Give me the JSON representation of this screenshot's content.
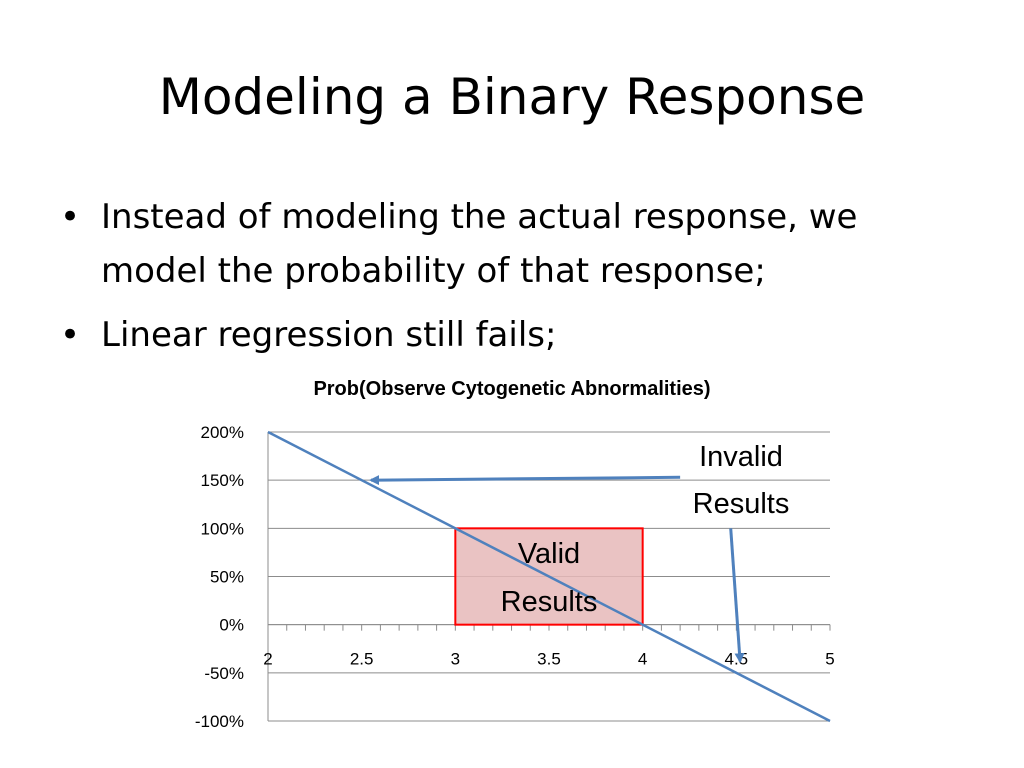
{
  "slide": {
    "title": "Modeling a Binary Response",
    "bullets": [
      "Instead of modeling the actual response, we model the probability of that response;",
      "Linear regression still fails;"
    ],
    "bullet_glyph": "•"
  },
  "chart_data": {
    "type": "line",
    "title": "Prob(Observe Cytogenetic Abnormalities)",
    "xlabel": "",
    "ylabel": "",
    "x_ticks": [
      2,
      2.5,
      3,
      3.5,
      4,
      4.5,
      5
    ],
    "y_ticks": [
      -1,
      -0.5,
      0,
      0.5,
      1,
      1.5,
      2
    ],
    "y_tick_labels": [
      "-100%",
      "-50%",
      "0%",
      "50%",
      "100%",
      "150%",
      "200%"
    ],
    "xlim": [
      2,
      5
    ],
    "ylim": [
      -1,
      2
    ],
    "grid": true,
    "series": [
      {
        "x": [
          2,
          5
        ],
        "y": [
          2,
          -1
        ],
        "color": "#4f81bd"
      }
    ],
    "annotations": {
      "valid_region": {
        "x": [
          3,
          4
        ],
        "y": [
          0,
          1
        ],
        "label_lines": [
          "Valid",
          "Results"
        ],
        "fill": "#e6b9b8",
        "stroke": "#ff0000"
      },
      "invalid_label_lines": [
        "Invalid",
        "Results"
      ],
      "arrow_color": "#4f81bd",
      "arrows": [
        {
          "from": [
            4.2,
            1.53
          ],
          "to": [
            2.55,
            1.5
          ]
        },
        {
          "from": [
            4.47,
            1.0
          ],
          "to": [
            4.52,
            -0.38
          ]
        }
      ]
    }
  }
}
